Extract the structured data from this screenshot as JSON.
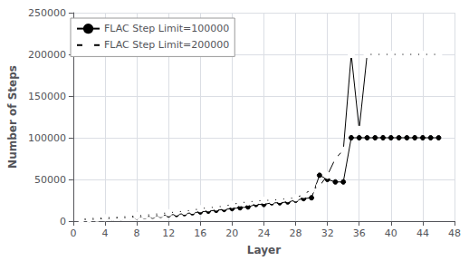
{
  "chart_data": {
    "type": "line",
    "xlabel": "Layer",
    "ylabel": "Number of Steps",
    "x": [
      1,
      2,
      3,
      4,
      5,
      6,
      7,
      8,
      9,
      10,
      11,
      12,
      13,
      14,
      15,
      16,
      17,
      18,
      19,
      20,
      21,
      22,
      23,
      24,
      25,
      26,
      27,
      28,
      29,
      30,
      31,
      32,
      33,
      34,
      35,
      36,
      37,
      38,
      39,
      40,
      41,
      42,
      43,
      44,
      45,
      46
    ],
    "series": [
      {
        "name": "FLAC Step Limit=100000",
        "color": "#000000",
        "marker": "circle",
        "values": [
          2000,
          2000,
          2500,
          3000,
          3500,
          4000,
          4500,
          5000,
          5500,
          6000,
          7000,
          7500,
          8000,
          9000,
          10000,
          11000,
          12000,
          13000,
          14000,
          15000,
          16000,
          17000,
          20000,
          20000,
          22000,
          22000,
          23000,
          25000,
          27000,
          28000,
          55000,
          50000,
          47000,
          47000,
          100000,
          100000,
          100000,
          100000,
          100000,
          100000,
          100000,
          100000,
          100000,
          100000,
          100000,
          100000
        ]
      },
      {
        "name": "FLAC Step Limit=200000",
        "color": "#000000",
        "marker": "open_circle",
        "values": [
          2500,
          3000,
          3500,
          4000,
          4500,
          5000,
          5500,
          6500,
          7000,
          8000,
          9000,
          10000,
          11000,
          12000,
          13000,
          15000,
          16000,
          17000,
          18000,
          20000,
          22000,
          23000,
          24000,
          25000,
          25000,
          26000,
          27000,
          28000,
          32000,
          38000,
          42000,
          55000,
          75000,
          85000,
          200000,
          110000,
          200000,
          200000,
          200000,
          200000,
          200000,
          200000,
          200000,
          200000,
          200000,
          200000
        ]
      }
    ],
    "xlim": [
      0,
      48
    ],
    "xticks": [
      0,
      4,
      8,
      12,
      16,
      20,
      24,
      28,
      32,
      36,
      40,
      44,
      48
    ],
    "ylim": [
      0,
      250000
    ],
    "yticks": [
      0,
      50000,
      100000,
      150000,
      200000,
      250000
    ],
    "grid": true,
    "legend": "upper left"
  }
}
